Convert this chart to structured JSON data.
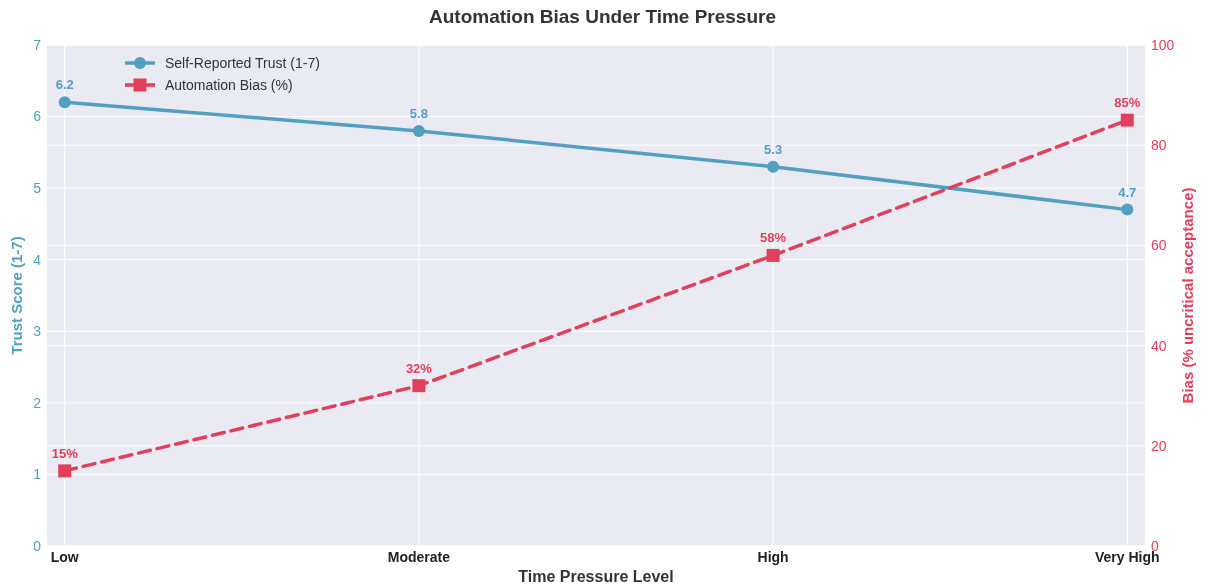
{
  "chart_data": {
    "type": "line",
    "title": "Automation Bias Under Time Pressure",
    "xlabel": "Time Pressure Level",
    "ylabel": "Trust Score (1-7)",
    "y2label": "Bias (% uncritical acceptance)",
    "categories": [
      "Low",
      "Moderate",
      "High",
      "Very High"
    ],
    "series": [
      {
        "name": "Self-Reported Trust (1-7)",
        "color": "#529fc2",
        "values": [
          6.2,
          5.8,
          5.3,
          4.7
        ],
        "value_labels": [
          "6.2",
          "5.8",
          "5.3",
          "4.7"
        ],
        "marker": "circle",
        "line_style": "solid"
      },
      {
        "name": "Automation Bias (%)",
        "color": "#e0405c",
        "values": [
          15,
          32,
          58,
          85
        ],
        "value_labels": [
          "15%",
          "32%",
          "58%",
          "85%"
        ],
        "marker": "square",
        "line_style": "dashed",
        "axis": "y2"
      }
    ],
    "ylim": [
      0,
      7
    ],
    "yticks": [
      0,
      1,
      2,
      3,
      4,
      5,
      6,
      7
    ],
    "y2lim": [
      0,
      100
    ],
    "y2ticks": [
      0,
      20,
      40,
      60,
      80,
      100
    ],
    "grid": true,
    "legend": "top left"
  }
}
